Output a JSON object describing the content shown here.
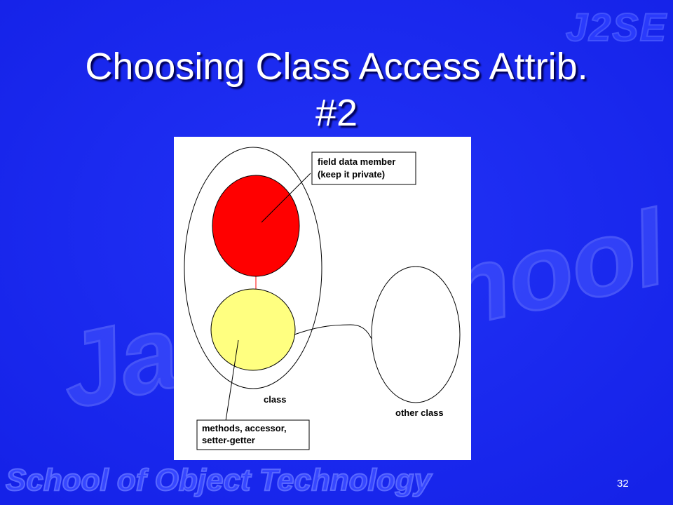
{
  "slide": {
    "title_line1": "Choosing Class Access Attrib.",
    "title_line2": "#2",
    "corner_logo": "J2SE",
    "background_watermark": "Java School",
    "footer_brand": "School of Object Technology",
    "slide_number": "32"
  },
  "diagram": {
    "labels": {
      "field_line1": "field data member",
      "field_line2": "(keep it private)",
      "class_label": "class",
      "other_class_label": "other class",
      "methods_line1": "methods, accessor,",
      "methods_line2": "setter-getter"
    },
    "colors": {
      "field_fill": "#ff0000",
      "methods_fill": "#ffff80",
      "link_red": "#ff0000",
      "outline": "#000000"
    }
  }
}
